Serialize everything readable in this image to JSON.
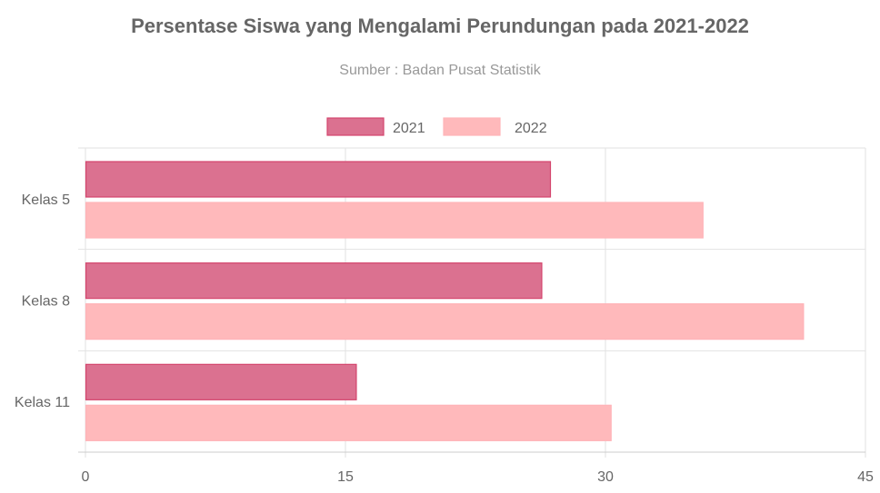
{
  "chart_data": {
    "type": "bar",
    "orientation": "horizontal",
    "title": "Persentase Siswa yang Mengalami Perundungan pada 2021-2022",
    "subtitle": "Sumber : Badan Pusat Statistik",
    "categories": [
      "Kelas 5",
      "Kelas 8",
      "Kelas 11"
    ],
    "series": [
      {
        "name": "2021",
        "values": [
          26.8,
          26.3,
          15.6
        ],
        "color": "#DB7190",
        "border": "#D4456D"
      },
      {
        "name": "2022",
        "values": [
          35.6,
          41.4,
          30.3
        ],
        "color": "#FFB9BB",
        "border": "#FFB3B8"
      }
    ],
    "xlim": [
      0,
      45
    ],
    "xticks": [
      "0",
      "15",
      "30",
      "45"
    ],
    "xlabel": "",
    "ylabel": "",
    "grid": true,
    "legend": "top-center"
  }
}
